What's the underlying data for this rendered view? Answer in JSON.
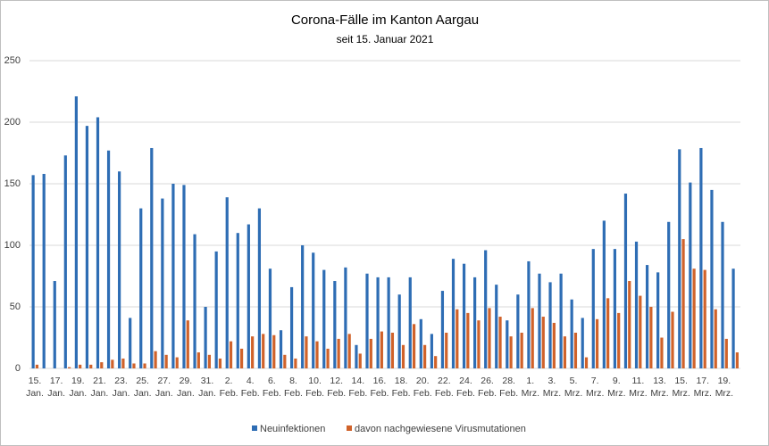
{
  "chart_data": {
    "type": "bar",
    "title": "Corona-Fälle im Kanton Aargau",
    "subtitle": "seit 15. Januar 2021",
    "categories": [
      "15. Jan.",
      null,
      "17. Jan.",
      null,
      "19. Jan.",
      null,
      "21. Jan.",
      null,
      "23. Jan.",
      null,
      "25. Jan.",
      null,
      "27. Jan.",
      null,
      "29. Jan.",
      null,
      "31. Jan.",
      null,
      "2. Feb.",
      null,
      "4. Feb.",
      null,
      "6. Feb.",
      null,
      "8. Feb.",
      null,
      "10. Feb.",
      null,
      "12. Feb.",
      null,
      "14. Feb.",
      null,
      "16. Feb.",
      null,
      "18. Feb.",
      null,
      "20. Feb.",
      null,
      "22. Feb.",
      null,
      "24. Feb.",
      null,
      "26. Feb.",
      null,
      "28. Feb.",
      null,
      "1. Mrz.",
      null,
      "3. Mrz.",
      null,
      "5. Mrz.",
      null,
      "7. Mrz.",
      null,
      "9. Mrz.",
      null,
      "11. Mrz.",
      null,
      "13. Mrz.",
      null,
      "15. Mrz.",
      null,
      "17. Mrz.",
      null,
      "19. Mrz.",
      null
    ],
    "series": [
      {
        "name": "Neuinfektionen",
        "color": "#2e6db4",
        "values": [
          157,
          158,
          71,
          173,
          221,
          197,
          204,
          177,
          160,
          41,
          130,
          179,
          138,
          150,
          149,
          109,
          50,
          95,
          139,
          110,
          117,
          130,
          81,
          31,
          66,
          100,
          94,
          80,
          71,
          82,
          19,
          77,
          74,
          74,
          60,
          74,
          40,
          28,
          63,
          89,
          85,
          74,
          96,
          68,
          39,
          60,
          87,
          77,
          70,
          77,
          56,
          41,
          97,
          120,
          97,
          142,
          103,
          84,
          78,
          119,
          178,
          151,
          179,
          145,
          119,
          81
        ]
      },
      {
        "name": "davon nachgewiesene Virusmutationen",
        "color": "#d0622a",
        "values": [
          3,
          0,
          0,
          1,
          3,
          3,
          5,
          7,
          8,
          4,
          4,
          14,
          11,
          9,
          39,
          13,
          11,
          8,
          22,
          16,
          26,
          28,
          27,
          11,
          8,
          26,
          22,
          16,
          24,
          28,
          12,
          24,
          30,
          29,
          19,
          36,
          19,
          10,
          29,
          48,
          45,
          39,
          49,
          42,
          26,
          29,
          49,
          42,
          37,
          26,
          29,
          9,
          40,
          57,
          45,
          71,
          59,
          50,
          25,
          46,
          105,
          81,
          80,
          48,
          24,
          13
        ]
      }
    ],
    "ylim": [
      0,
      250
    ],
    "yticks": [
      0,
      50,
      100,
      150,
      200,
      250
    ],
    "grid": true,
    "legend": "bottom"
  }
}
